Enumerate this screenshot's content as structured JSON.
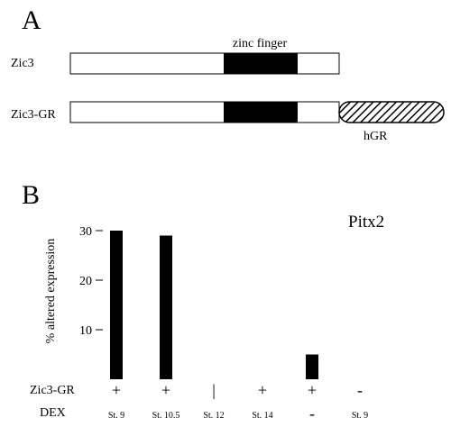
{
  "panel_a": {
    "label": "A",
    "zinc_finger_label": "zinc finger",
    "construct1_label": "Zic3",
    "construct2_label": "Zic3-GR",
    "hgr_label": "hGR"
  },
  "panel_b": {
    "label": "B",
    "gene_label": "Pitx2",
    "row1_label": "Zic3-GR",
    "row2_label": "DEX"
  },
  "chart_data": {
    "type": "bar",
    "title": "Pitx2",
    "ylabel": "% altered expression",
    "ylim": [
      0,
      30
    ],
    "yticks": [
      "30",
      "20",
      "10"
    ],
    "conditions": [
      {
        "zic3gr": "+",
        "dex": "St. 9",
        "value": 30
      },
      {
        "zic3gr": "+",
        "dex": "St. 10.5",
        "value": 29
      },
      {
        "zic3gr": "|",
        "dex": "St. 12",
        "value": 0
      },
      {
        "zic3gr": "+",
        "dex": "St. 14",
        "value": 0
      },
      {
        "zic3gr": "+",
        "dex": "-",
        "value": 5
      },
      {
        "zic3gr": "-",
        "dex": "St. 9",
        "value": 0
      }
    ]
  }
}
